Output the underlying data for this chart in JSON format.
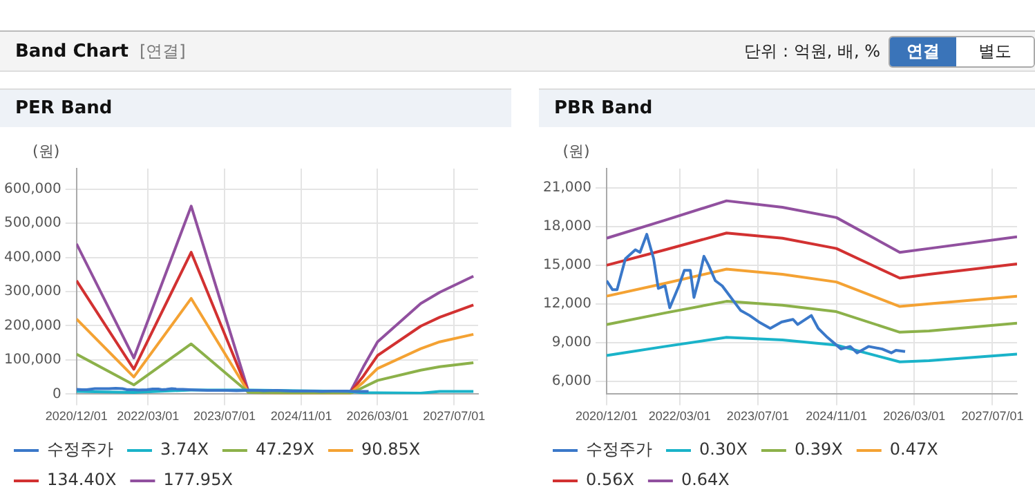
{
  "chart_data": [
    {
      "type": "other",
      "title": "Band Chart",
      "annotations": [
        "[연결]",
        "단위 : 억원, 배, %",
        "연결",
        "별도"
      ]
    },
    {
      "type": "line",
      "title": "PER Band",
      "ylabel": "(원)",
      "legend": "bottom",
      "grid": true,
      "marker": "none",
      "line_style": "solid",
      "x": [
        "2020-12-01",
        "2021-12-01",
        "2022-12-01",
        "2023-12-01",
        "2025-09-01",
        "2025-12-01",
        "2026-03-01",
        "2026-12-01",
        "2027-04-01",
        "2027-11-01"
      ],
      "xlim": [
        "2020-12-01",
        "2027-12-01"
      ],
      "xticks": [
        {
          "value": "2020-12-01",
          "label": "2020/12/01"
        },
        {
          "value": "2022-03-01",
          "label": "2022/03/01"
        },
        {
          "value": "2023-07-01",
          "label": "2023/07/01"
        },
        {
          "value": "2024-11-01",
          "label": "2024/11/01"
        },
        {
          "value": "2026-03-01",
          "label": "2026/03/01"
        },
        {
          "value": "2027-07-01",
          "label": "2027/07/01"
        }
      ],
      "ylim": [
        0,
        660000
      ],
      "yticks": [
        {
          "value": 0,
          "label": "0"
        },
        {
          "value": 100000,
          "label": "100,000"
        },
        {
          "value": 200000,
          "label": "200,000"
        },
        {
          "value": 300000,
          "label": "300,000"
        },
        {
          "value": 400000,
          "label": "400,000"
        },
        {
          "value": 500000,
          "label": "500,000"
        },
        {
          "value": 600000,
          "label": "600,000"
        }
      ],
      "series": [
        {
          "name": "수정주가",
          "color": "#3a78c9",
          "x": [
            "2020-12-01",
            "2021-01-07",
            "2021-02-04",
            "2021-03-28",
            "2021-05-29",
            "2021-06-27",
            "2021-08-08",
            "2021-09-20",
            "2021-10-19",
            "2021-11-30",
            "2021-12-29",
            "2022-02-24",
            "2022-03-30",
            "2022-05-06",
            "2022-05-29",
            "2022-06-26",
            "2022-07-30",
            "2022-08-28",
            "2022-10-09",
            "2022-11-21",
            "2023-03-15",
            "2023-05-11",
            "2023-07-07",
            "2023-09-16",
            "2023-11-26",
            "2024-02-05",
            "2024-03-05",
            "2024-05-29",
            "2024-07-11",
            "2024-09-06",
            "2024-11-30",
            "2025-01-26",
            "2025-03-10",
            "2025-05-20",
            "2025-08-13",
            "2025-10-09",
            "2025-11-07",
            "2026-01-03"
          ],
          "values": [
            14000,
            13000,
            13000,
            16000,
            16000,
            16000,
            17000,
            16000,
            13000,
            13000,
            12000,
            13000,
            15000,
            15000,
            13000,
            14000,
            16000,
            15000,
            14000,
            13000,
            11000,
            11000,
            11000,
            10000,
            11000,
            11000,
            10000,
            11000,
            10000,
            9000,
            9000,
            9000,
            8000,
            9000,
            9000,
            8000,
            8000,
            8000
          ]
        },
        {
          "name": "3.74X",
          "color": "#1ab3c9",
          "values": [
            8000,
            5000,
            12000,
            12000,
            8000,
            4000,
            4000,
            3000,
            8000,
            8000
          ]
        },
        {
          "name": "47.29X",
          "color": "#8cb14a",
          "values": [
            117000,
            27000,
            147000,
            5000,
            0,
            20000,
            40000,
            70000,
            80000,
            92000
          ]
        },
        {
          "name": "90.85X",
          "color": "#f4a233",
          "values": [
            220000,
            50000,
            280000,
            5000,
            0,
            35000,
            75000,
            133000,
            153000,
            175000
          ]
        },
        {
          "name": "134.40X",
          "color": "#d23131",
          "values": [
            332000,
            73000,
            415000,
            5000,
            0,
            53000,
            113000,
            199000,
            225000,
            261000
          ]
        },
        {
          "name": "177.95X",
          "color": "#91509f",
          "values": [
            440000,
            106000,
            550000,
            7000,
            0,
            80000,
            153000,
            265000,
            298000,
            345000
          ]
        }
      ]
    },
    {
      "type": "line",
      "title": "PBR Band",
      "ylabel": "(원)",
      "legend": "bottom",
      "grid": true,
      "marker": "none",
      "line_style": "solid",
      "x": [
        "2020-12-01",
        "2021-12-01",
        "2022-12-18",
        "2023-12-01",
        "2024-11-01",
        "2025-12-01",
        "2026-06-01",
        "2027-12-01"
      ],
      "xlim": [
        "2020-12-01",
        "2027-12-01"
      ],
      "xticks": [
        {
          "value": "2020-12-01",
          "label": "2020/12/01"
        },
        {
          "value": "2022-03-01",
          "label": "2022/03/01"
        },
        {
          "value": "2023-07-01",
          "label": "2023/07/01"
        },
        {
          "value": "2024-11-01",
          "label": "2024/11/01"
        },
        {
          "value": "2026-03-01",
          "label": "2026/03/01"
        },
        {
          "value": "2027-07-01",
          "label": "2027/07/01"
        }
      ],
      "ylim": [
        5000,
        22500
      ],
      "yticks": [
        {
          "value": 6000,
          "label": "6,000"
        },
        {
          "value": 9000,
          "label": "9,000"
        },
        {
          "value": 12000,
          "label": "12,000"
        },
        {
          "value": 15000,
          "label": "15,000"
        },
        {
          "value": 18000,
          "label": "18,000"
        },
        {
          "value": 21000,
          "label": "21,000"
        }
      ],
      "series": [
        {
          "name": "수정주가",
          "color": "#3a78c9",
          "x": [
            "2020-12-01",
            "2021-01-07",
            "2021-02-04",
            "2021-03-28",
            "2021-05-29",
            "2021-06-27",
            "2021-08-08",
            "2021-09-20",
            "2021-10-19",
            "2021-11-30",
            "2021-12-29",
            "2022-02-24",
            "2022-03-30",
            "2022-05-06",
            "2022-05-29",
            "2022-06-26",
            "2022-07-30",
            "2022-08-28",
            "2022-10-09",
            "2022-11-21",
            "2023-03-15",
            "2023-05-11",
            "2023-07-07",
            "2023-09-16",
            "2023-11-26",
            "2024-02-05",
            "2024-03-05",
            "2024-05-29",
            "2024-07-11",
            "2024-09-06",
            "2024-11-30",
            "2025-01-26",
            "2025-03-10",
            "2025-05-20",
            "2025-08-13",
            "2025-10-09",
            "2025-11-07",
            "2026-01-03"
          ],
          "values": [
            13800,
            13100,
            13100,
            15500,
            16200,
            16000,
            17400,
            15500,
            13200,
            13400,
            11700,
            13400,
            14600,
            14600,
            12500,
            13800,
            15700,
            15000,
            13800,
            13400,
            11500,
            11100,
            10600,
            10100,
            10600,
            10800,
            10400,
            11100,
            10100,
            9400,
            8500,
            8700,
            8200,
            8700,
            8500,
            8200,
            8400,
            8300
          ]
        },
        {
          "name": "0.30X",
          "color": "#1ab3c9",
          "values": [
            8000,
            8700,
            9400,
            9200,
            8800,
            7500,
            7600,
            8100
          ]
        },
        {
          "name": "0.39X",
          "color": "#8cb14a",
          "values": [
            10400,
            11300,
            12200,
            11900,
            11400,
            9800,
            9900,
            10500
          ]
        },
        {
          "name": "0.47X",
          "color": "#f4a233",
          "values": [
            12600,
            13600,
            14700,
            14300,
            13700,
            11800,
            12000,
            12600
          ]
        },
        {
          "name": "0.56X",
          "color": "#d23131",
          "values": [
            15000,
            16200,
            17500,
            17100,
            16300,
            14000,
            14300,
            15100
          ]
        },
        {
          "name": "0.64X",
          "color": "#91509f",
          "values": [
            17100,
            18500,
            20000,
            19500,
            18700,
            16000,
            16300,
            17200
          ]
        }
      ]
    }
  ]
}
